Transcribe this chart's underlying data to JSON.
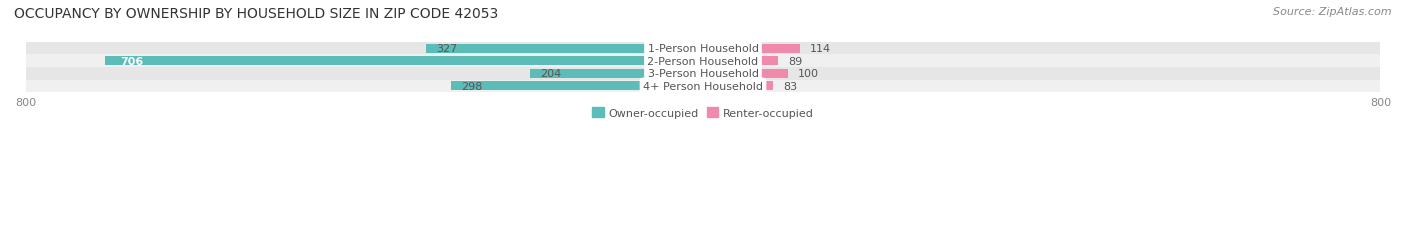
{
  "title": "OCCUPANCY BY OWNERSHIP BY HOUSEHOLD SIZE IN ZIP CODE 42053",
  "source": "Source: ZipAtlas.com",
  "categories": [
    "1-Person Household",
    "2-Person Household",
    "3-Person Household",
    "4+ Person Household"
  ],
  "owner_values": [
    327,
    706,
    204,
    298
  ],
  "renter_values": [
    114,
    89,
    100,
    83
  ],
  "owner_color": "#5bbcb8",
  "renter_color": "#f08aab",
  "row_bg_colors": [
    "#f0f0f0",
    "#e6e6e6"
  ],
  "axis_min": -800,
  "axis_max": 800,
  "title_fontsize": 10,
  "source_fontsize": 8,
  "label_fontsize": 8,
  "tick_fontsize": 8,
  "legend_fontsize": 8,
  "owner_threshold": 400
}
